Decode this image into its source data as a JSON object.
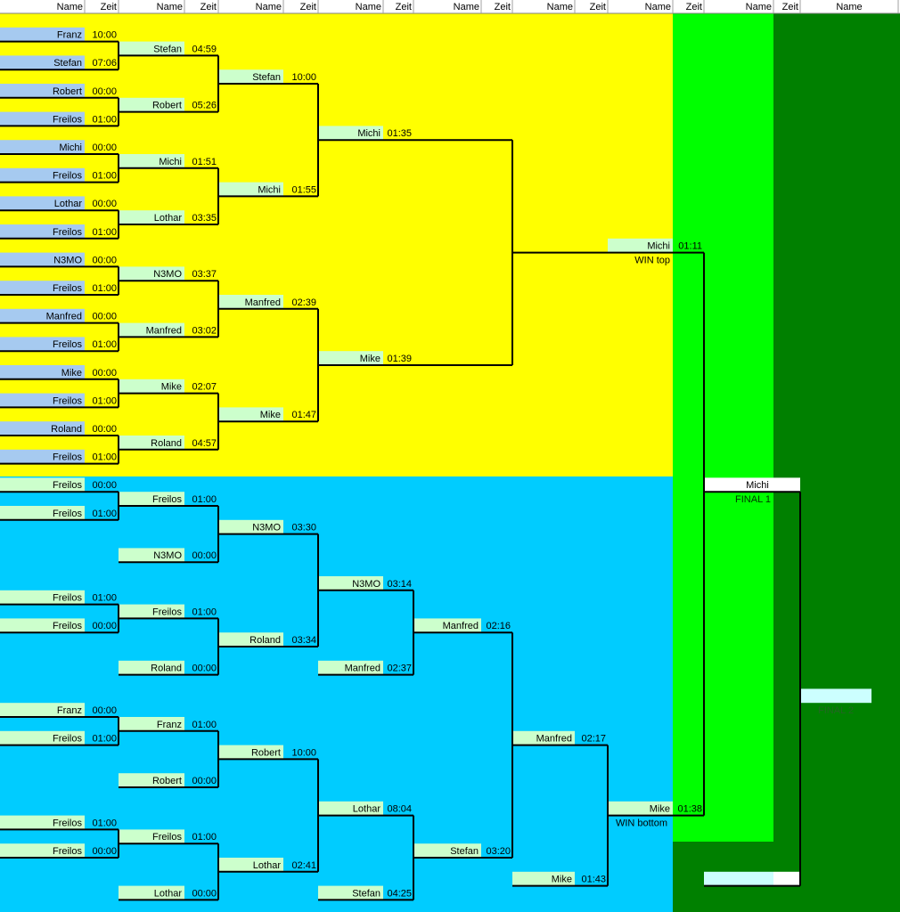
{
  "header": [
    "Name",
    "Zeit",
    "Name",
    "Zeit",
    "Name",
    "Zeit",
    "Name",
    "Zeit",
    "Name",
    "Zeit",
    "Name",
    "Zeit",
    "Name",
    "Zeit",
    "Name",
    "Zeit",
    "Name"
  ],
  "upper_rounds": [
    [
      {
        "name": "Franz",
        "time": "10:00"
      },
      {
        "name": "Stefan",
        "time": "07:06"
      },
      {
        "name": "Robert",
        "time": "00:00"
      },
      {
        "name": "Freilos",
        "time": "01:00"
      },
      {
        "name": "Michi",
        "time": "00:00"
      },
      {
        "name": "Freilos",
        "time": "01:00"
      },
      {
        "name": "Lothar",
        "time": "00:00"
      },
      {
        "name": "Freilos",
        "time": "01:00"
      },
      {
        "name": "N3MO",
        "time": "00:00"
      },
      {
        "name": "Freilos",
        "time": "01:00"
      },
      {
        "name": "Manfred",
        "time": "00:00"
      },
      {
        "name": "Freilos",
        "time": "01:00"
      },
      {
        "name": "Mike",
        "time": "00:00"
      },
      {
        "name": "Freilos",
        "time": "01:00"
      },
      {
        "name": "Roland",
        "time": "00:00"
      },
      {
        "name": "Freilos",
        "time": "01:00"
      }
    ],
    [
      {
        "name": "Stefan",
        "time": "04:59"
      },
      {
        "name": "Robert",
        "time": "05:26"
      },
      {
        "name": "Michi",
        "time": "01:51"
      },
      {
        "name": "Lothar",
        "time": "03:35"
      },
      {
        "name": "N3MO",
        "time": "03:37"
      },
      {
        "name": "Manfred",
        "time": "03:02"
      },
      {
        "name": "Mike",
        "time": "02:07"
      },
      {
        "name": "Roland",
        "time": "04:57"
      }
    ],
    [
      {
        "name": "Stefan",
        "time": "10:00"
      },
      {
        "name": "Michi",
        "time": "01:55"
      },
      {
        "name": "Manfred",
        "time": "02:39"
      },
      {
        "name": "Mike",
        "time": "01:47"
      }
    ],
    [
      {
        "name": "Michi",
        "time": "01:35"
      },
      {
        "name": "Mike",
        "time": "01:39"
      }
    ]
  ],
  "upper_winner": {
    "name": "Michi",
    "time": "01:11",
    "label": "WIN top"
  },
  "lower_rounds": [
    [
      {
        "name": "Freilos",
        "time": "00:00"
      },
      {
        "name": "Freilos",
        "time": "01:00"
      },
      {
        "name": "Freilos",
        "time": "01:00"
      },
      {
        "name": "Freilos",
        "time": "00:00"
      },
      {
        "name": "Franz",
        "time": "00:00"
      },
      {
        "name": "Freilos",
        "time": "01:00"
      },
      {
        "name": "Freilos",
        "time": "01:00"
      },
      {
        "name": "Freilos",
        "time": "00:00"
      }
    ],
    [
      {
        "name": "Freilos",
        "time": "01:00"
      },
      {
        "name": "N3MO",
        "time": "00:00"
      },
      {
        "name": "Freilos",
        "time": "01:00"
      },
      {
        "name": "Roland",
        "time": "00:00"
      },
      {
        "name": "Franz",
        "time": "01:00"
      },
      {
        "name": "Robert",
        "time": "00:00"
      },
      {
        "name": "Freilos",
        "time": "01:00"
      },
      {
        "name": "Lothar",
        "time": "00:00"
      }
    ],
    [
      {
        "name": "N3MO",
        "time": "03:30"
      },
      {
        "name": "Roland",
        "time": "03:34"
      },
      {
        "name": "Robert",
        "time": "10:00"
      },
      {
        "name": "Lothar",
        "time": "02:41"
      }
    ],
    [
      {
        "name": "N3MO",
        "time": "03:14"
      },
      {
        "name": "Manfred",
        "time": "02:37"
      },
      {
        "name": "Lothar",
        "time": "08:04"
      },
      {
        "name": "Stefan",
        "time": "04:25"
      }
    ],
    [
      {
        "name": "Manfred",
        "time": "02:16"
      },
      {
        "name": "Stefan",
        "time": "03:20"
      }
    ],
    [
      {
        "name": "Manfred",
        "time": "02:17"
      },
      {
        "name": "Mike",
        "time": "01:43"
      }
    ]
  ],
  "lower_winner": {
    "name": "Mike",
    "time": "01:38",
    "label": "WIN bottom"
  },
  "final_1": {
    "name": "Michi",
    "label": "FINAL 1"
  },
  "final_2": {
    "label": "FINAL 2"
  }
}
